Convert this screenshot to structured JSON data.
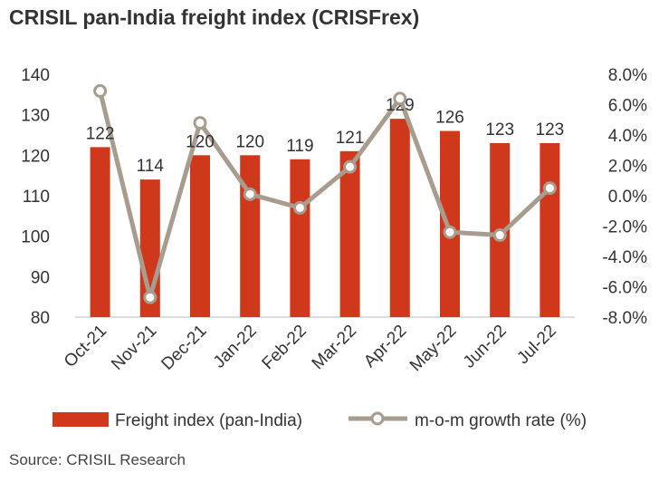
{
  "title": "CRISIL pan-India freight index (CRISFrex)",
  "source": "Source: CRISIL Research",
  "chart_data": {
    "type": "bar+line",
    "title": "CRISIL pan-India freight index (CRISFrex)",
    "categories": [
      "Oct-21",
      "Nov-21",
      "Dec-21",
      "Jan-22",
      "Feb-22",
      "Mar-22",
      "Apr-22",
      "May-22",
      "Jun-22",
      "Jul-22"
    ],
    "series": [
      {
        "name": "Freight index (pan-India)",
        "type": "bar",
        "axis": "left",
        "color": "#D0381C",
        "values": [
          122,
          114,
          120,
          120,
          119,
          121,
          129,
          126,
          123,
          123
        ]
      },
      {
        "name": "m-o-m growth rate (%)",
        "type": "line",
        "axis": "right",
        "color": "#A79C8E",
        "values": [
          6.9,
          -6.7,
          4.8,
          0.1,
          -0.8,
          1.9,
          6.4,
          -2.4,
          -2.6,
          0.5
        ]
      }
    ],
    "ylim_left": [
      80,
      140
    ],
    "yticks_left": [
      "80",
      "90",
      "100",
      "110",
      "120",
      "130",
      "140"
    ],
    "ylim_right": [
      -8,
      8
    ],
    "yticks_right": [
      "-8.0%",
      "-6.0%",
      "-4.0%",
      "-2.0%",
      "0.0%",
      "2.0%",
      "4.0%",
      "6.0%",
      "8.0%"
    ],
    "grid": false,
    "legend": "bottom"
  }
}
